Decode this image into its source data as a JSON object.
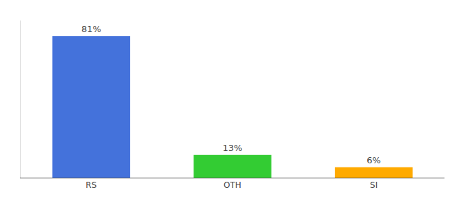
{
  "chart_data": {
    "type": "bar",
    "categories": [
      "RS",
      "OTH",
      "SI"
    ],
    "values": [
      81,
      13,
      6
    ],
    "value_labels": [
      "81%",
      "13%",
      "6%"
    ],
    "colors": [
      "#4472db",
      "#33cc33",
      "#ffaa00"
    ],
    "ylim": [
      0,
      90
    ],
    "data_labels": true,
    "tick_labels": "x",
    "grid": false
  }
}
